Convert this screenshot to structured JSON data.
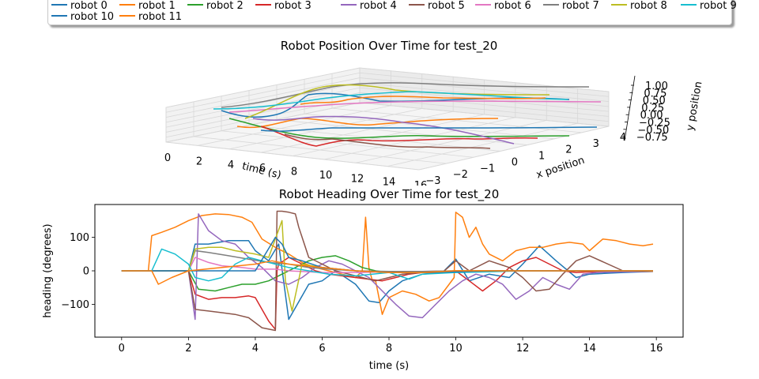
{
  "legend": {
    "items": [
      {
        "label": "robot 0",
        "color": "#1f77b4"
      },
      {
        "label": "robot 1",
        "color": "#ff7f0e"
      },
      {
        "label": "robot 2",
        "color": "#2ca02c"
      },
      {
        "label": "robot 3",
        "color": "#d62728"
      },
      {
        "label": "robot 4",
        "color": "#9467bd"
      },
      {
        "label": "robot 5",
        "color": "#8c564b"
      },
      {
        "label": "robot 6",
        "color": "#e377c2"
      },
      {
        "label": "robot 7",
        "color": "#7f7f7f"
      },
      {
        "label": "robot 8",
        "color": "#bcbd22"
      },
      {
        "label": "robot 9",
        "color": "#17becf"
      },
      {
        "label": "robot 10",
        "color": "#1f77b4"
      },
      {
        "label": "robot 11",
        "color": "#ff7f0e"
      }
    ]
  },
  "chart_data": [
    {
      "type": "line",
      "subtype": "3d",
      "title": "Robot Position Over Time for test_20",
      "xlabel": "time (s)",
      "ylabel": "x position",
      "zlabel": "y position",
      "xticks": [
        "0",
        "2",
        "4",
        "6",
        "8",
        "10",
        "12",
        "14",
        "16"
      ],
      "yticks": [
        "−3",
        "−2",
        "−1",
        "0",
        "1",
        "2",
        "3",
        "4"
      ],
      "zticks": [
        "1.00",
        "0.75",
        "0.50",
        "0.25",
        "0.00",
        "−0.25",
        "−0.50",
        "−0.75"
      ],
      "grid": true
    },
    {
      "type": "line",
      "title": "Robot Heading Over Time for test_20",
      "xlabel": "time (s)",
      "ylabel": "heading (degrees)",
      "xlim": [
        -0.8,
        16.8
      ],
      "ylim": [
        -198,
        198
      ],
      "xticks": [
        0,
        2,
        4,
        6,
        8,
        10,
        12,
        14,
        16
      ],
      "yticks": [
        -100,
        0,
        100
      ],
      "series": [
        {
          "name": "robot 0",
          "color": "#1f77b4",
          "x": [
            0,
            0.8,
            2.0,
            2.2,
            2.6,
            3.2,
            3.8,
            4.0,
            4.4,
            4.7,
            5.0,
            5.6,
            6.0,
            6.4,
            7.0,
            7.4,
            7.7,
            8.0,
            8.4,
            9.0,
            9.6,
            10.0,
            10.4,
            11.0,
            11.6,
            12.0,
            12.5,
            13.0,
            13.6,
            14.0,
            15.0,
            15.9
          ],
          "y": [
            0,
            0,
            0,
            80,
            80,
            90,
            90,
            60,
            30,
            80,
            -145,
            -40,
            -30,
            0,
            -40,
            -90,
            -95,
            -60,
            -30,
            -10,
            -5,
            35,
            -30,
            -10,
            -20,
            20,
            75,
            30,
            -20,
            -10,
            -5,
            -2
          ]
        },
        {
          "name": "robot 1",
          "color": "#ff7f0e",
          "x": [
            0,
            0.8,
            0.9,
            1.2,
            1.6,
            2.0,
            2.4,
            2.8,
            3.2,
            3.6,
            3.9,
            4.2,
            4.6,
            5.0,
            5.4,
            5.8,
            6.2,
            6.6,
            7.0,
            7.2,
            7.3,
            7.4,
            7.5,
            7.6,
            7.8,
            8.0,
            8.4,
            8.8,
            9.2,
            9.5,
            9.8,
            9.95,
            10.0,
            10.2,
            10.4,
            10.6,
            10.8,
            11.0,
            11.4,
            11.8,
            12.2,
            12.6,
            13.0,
            13.4,
            13.8,
            14.0,
            14.4,
            14.8,
            15.2,
            15.6,
            15.9
          ],
          "y": [
            0,
            0,
            105,
            115,
            130,
            150,
            165,
            170,
            168,
            160,
            145,
            95,
            70,
            50,
            25,
            10,
            0,
            -10,
            -20,
            0,
            160,
            10,
            -30,
            -30,
            -130,
            -80,
            -60,
            -70,
            -90,
            -80,
            -40,
            -20,
            175,
            160,
            100,
            130,
            80,
            50,
            30,
            60,
            70,
            70,
            80,
            85,
            80,
            60,
            95,
            90,
            80,
            75,
            80
          ]
        },
        {
          "name": "robot 2",
          "color": "#2ca02c",
          "x": [
            0,
            2.0,
            2.3,
            2.8,
            3.2,
            3.6,
            4.0,
            4.4,
            4.8,
            5.2,
            5.6,
            6.0,
            6.4,
            6.8,
            7.2,
            7.6,
            8.0,
            8.6,
            9.2,
            10.0,
            11.0,
            12.0,
            13.0,
            14.0,
            15.0,
            15.9
          ],
          "y": [
            0,
            0,
            -55,
            -60,
            -50,
            -40,
            -40,
            -30,
            -10,
            10,
            30,
            40,
            45,
            30,
            10,
            0,
            -5,
            -5,
            -2,
            0,
            0,
            0,
            0,
            0,
            0,
            0
          ]
        },
        {
          "name": "robot 3",
          "color": "#d62728",
          "x": [
            0,
            2.0,
            2.2,
            2.6,
            3.0,
            3.4,
            3.8,
            4.0,
            4.4,
            4.6,
            4.65,
            4.7,
            5.0,
            5.4,
            5.8,
            6.2,
            6.6,
            7.0,
            7.4,
            7.8,
            8.2,
            8.6,
            9.0,
            9.5,
            10.0,
            10.4,
            10.8,
            11.2,
            11.6,
            12.0,
            12.4,
            12.8,
            13.2,
            13.6,
            14.0,
            15.0,
            15.9
          ],
          "y": [
            0,
            0,
            -70,
            -85,
            -80,
            -80,
            -75,
            -80,
            -150,
            -175,
            0,
            20,
            40,
            20,
            0,
            -10,
            -15,
            -20,
            -25,
            -30,
            -20,
            -10,
            -5,
            -5,
            0,
            -30,
            -60,
            -30,
            10,
            30,
            40,
            20,
            0,
            -5,
            -3,
            -2,
            0
          ]
        },
        {
          "name": "robot 4",
          "color": "#9467bd",
          "x": [
            0,
            2.0,
            2.2,
            2.3,
            2.6,
            3.0,
            3.4,
            3.8,
            4.2,
            4.6,
            5.0,
            5.4,
            5.8,
            6.2,
            6.6,
            7.0,
            7.4,
            7.8,
            8.2,
            8.6,
            9.0,
            9.4,
            9.8,
            10.2,
            10.6,
            11.0,
            11.4,
            11.8,
            12.2,
            12.6,
            13.0,
            13.4,
            13.8,
            14.2,
            15.0,
            15.9
          ],
          "y": [
            0,
            0,
            -145,
            170,
            120,
            90,
            80,
            40,
            10,
            -30,
            -40,
            -20,
            10,
            30,
            20,
            0,
            -20,
            -60,
            -100,
            -135,
            -140,
            -100,
            -60,
            -30,
            -10,
            -20,
            -40,
            -85,
            -60,
            -20,
            -40,
            -55,
            -10,
            -5,
            -3,
            -2
          ]
        },
        {
          "name": "robot 5",
          "color": "#8c564b",
          "x": [
            0,
            2.0,
            2.2,
            2.6,
            3.0,
            3.4,
            3.8,
            4.2,
            4.6,
            4.65,
            4.8,
            5.0,
            5.2,
            5.3,
            5.6,
            6.0,
            6.4,
            6.8,
            7.2,
            7.6,
            8.0,
            8.4,
            9.0,
            9.6,
            10.0,
            10.4,
            11.0,
            11.6,
            12.0,
            12.4,
            12.8,
            13.2,
            13.6,
            14.0,
            15.0,
            15.9
          ],
          "y": [
            0,
            0,
            -115,
            -120,
            -125,
            -130,
            -140,
            -170,
            -178,
            178,
            178,
            175,
            170,
            130,
            40,
            20,
            0,
            -10,
            -20,
            -30,
            -20,
            -10,
            -5,
            -5,
            30,
            0,
            30,
            10,
            -20,
            -60,
            -55,
            -10,
            30,
            45,
            0,
            -2
          ]
        },
        {
          "name": "robot 6",
          "color": "#e377c2",
          "x": [
            0,
            2.0,
            2.2,
            2.6,
            3.0,
            3.6,
            4.0,
            4.6,
            5.0,
            6.0,
            7.0,
            8.0,
            9.0,
            10.0,
            12.0,
            14.0,
            15.9
          ],
          "y": [
            0,
            0,
            40,
            25,
            15,
            10,
            5,
            5,
            0,
            -5,
            -5,
            -3,
            -2,
            0,
            0,
            0,
            0
          ]
        },
        {
          "name": "robot 7",
          "color": "#7f7f7f",
          "x": [
            0,
            2.0,
            2.2,
            2.6,
            3.2,
            3.8,
            4.4,
            5.0,
            5.6,
            6.2,
            7.0,
            8.0,
            9.0,
            10.0,
            12.0,
            14.0,
            15.9
          ],
          "y": [
            0,
            0,
            60,
            55,
            45,
            35,
            25,
            20,
            10,
            5,
            0,
            -2,
            -2,
            0,
            0,
            0,
            0
          ]
        },
        {
          "name": "robot 8",
          "color": "#bcbd22",
          "x": [
            0,
            2.0,
            2.2,
            2.6,
            3.0,
            3.4,
            4.0,
            4.4,
            4.8,
            4.9,
            5.1,
            5.4,
            6.0,
            7.0,
            8.0,
            9.0,
            10.0,
            12.0,
            14.0,
            15.9
          ],
          "y": [
            0,
            0,
            65,
            70,
            70,
            60,
            50,
            40,
            150,
            -30,
            -120,
            20,
            10,
            0,
            -5,
            -5,
            0,
            0,
            0,
            0
          ]
        },
        {
          "name": "robot 9",
          "color": "#17becf",
          "x": [
            0,
            0.9,
            1.2,
            1.6,
            2.0,
            2.2,
            2.6,
            3.0,
            3.4,
            3.8,
            4.2,
            4.6,
            5.0,
            5.6,
            6.2,
            7.0,
            8.0,
            8.6,
            9.0,
            10.0,
            11.0,
            12.0,
            14.0,
            15.9
          ],
          "y": [
            0,
            0,
            65,
            50,
            20,
            -20,
            -30,
            -20,
            20,
            40,
            30,
            20,
            10,
            0,
            -10,
            -15,
            -5,
            -25,
            -10,
            -5,
            -3,
            0,
            0,
            0
          ]
        },
        {
          "name": "robot 10",
          "color": "#1f77b4",
          "x": [
            0,
            2.0,
            3.0,
            4.0,
            4.6,
            4.8,
            5.0,
            5.4,
            6.0,
            7.0,
            8.0,
            9.0,
            10.0,
            11.0,
            12.0,
            13.0,
            14.0,
            15.0,
            15.9
          ],
          "y": [
            0,
            0,
            0,
            0,
            100,
            80,
            40,
            30,
            10,
            0,
            -5,
            -5,
            -3,
            0,
            0,
            0,
            0,
            0,
            0
          ]
        },
        {
          "name": "robot 11",
          "color": "#ff7f0e",
          "x": [
            0,
            0.9,
            1.1,
            1.5,
            2.0,
            2.5,
            3.0,
            3.5,
            4.0,
            4.5,
            5.0,
            6.0,
            7.0,
            8.0,
            9.0,
            10.0,
            11.0,
            12.0,
            13.0,
            14.0,
            15.0,
            15.9
          ],
          "y": [
            0,
            0,
            -40,
            -20,
            0,
            5,
            10,
            15,
            20,
            30,
            20,
            10,
            0,
            -5,
            -5,
            0,
            0,
            0,
            0,
            0,
            0,
            0
          ]
        }
      ]
    }
  ]
}
